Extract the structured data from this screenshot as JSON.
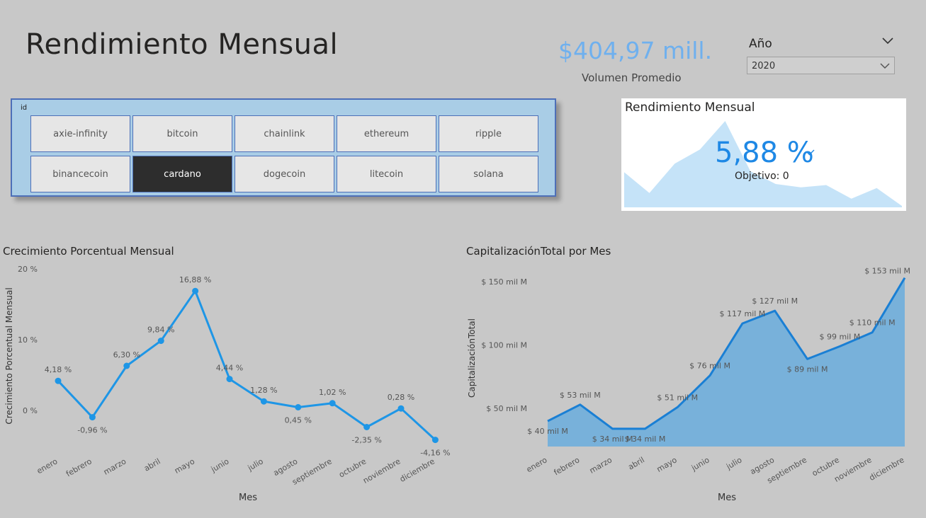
{
  "header": {
    "title": "Rendimiento Mensual"
  },
  "kpi": {
    "value": "$404,97 mill.",
    "label": "Volumen Promedio"
  },
  "year_filter": {
    "label": "Año",
    "selected": "2020"
  },
  "slicer": {
    "title": "id",
    "items": [
      "axie-infinity",
      "bitcoin",
      "chainlink",
      "ethereum",
      "ripple",
      "binancecoin",
      "cardano",
      "dogecoin",
      "litecoin",
      "solana"
    ],
    "selected": "cardano"
  },
  "card": {
    "title": "Rendimiento Mensual",
    "value": "5,88 %",
    "goal": "Objetivo: 0",
    "sparkline": [
      4.18,
      -0.96,
      6.3,
      9.84,
      16.88,
      4.44,
      1.28,
      0.45,
      1.02,
      -2.35,
      0.28,
      -4.16
    ],
    "colors": {
      "accent": "#1e88e5",
      "spark_fill": "#c5e3f8"
    }
  },
  "chart_data": [
    {
      "type": "line",
      "title": "Crecimiento Porcentual Mensual",
      "xlabel": "Mes",
      "ylabel": "Crecimiento Porcentual Mensual",
      "categories": [
        "enero",
        "febrero",
        "marzo",
        "abril",
        "mayo",
        "junio",
        "julio",
        "agosto",
        "septiembre",
        "octubre",
        "noviembre",
        "diciembre"
      ],
      "values": [
        4.18,
        -0.96,
        6.3,
        9.84,
        16.88,
        4.44,
        1.28,
        0.45,
        1.02,
        -2.35,
        0.28,
        -4.16
      ],
      "data_labels": [
        "4,18 %",
        "-0,96 %",
        "6,30 %",
        "9,84 %",
        "16,88 %",
        "4,44 %",
        "1,28 %",
        "0,45 %",
        "1,02 %",
        "-2,35 %",
        "0,28 %",
        "-4,16 %"
      ],
      "yticks": [
        0,
        10,
        20
      ],
      "ytick_labels": [
        "0 %",
        "10 %",
        "20 %"
      ],
      "ylim": [
        -5,
        20
      ],
      "color": "#1e96e6",
      "grid": false
    },
    {
      "type": "area",
      "title": "CapitalizaciónTotal por Mes",
      "xlabel": "Mes",
      "ylabel": "CapitalizaciónTotal",
      "categories": [
        "enero",
        "febrero",
        "marzo",
        "abril",
        "mayo",
        "junio",
        "julio",
        "agosto",
        "septiembre",
        "octubre",
        "noviembre",
        "diciembre"
      ],
      "values": [
        40,
        53,
        34,
        34,
        51,
        76,
        117,
        127,
        89,
        99,
        110,
        153
      ],
      "data_labels": [
        "$ 40 mil M",
        "$ 53 mil M",
        "$ 34 mil M",
        "$ 34 mil M",
        "$ 51 mil M",
        "$ 76 mil M",
        "$ 117 mil M",
        "$ 127 mil M",
        "$ 89 mil M",
        "$ 99 mil M",
        "$ 110 mil M",
        "$ 153 mil M"
      ],
      "yticks": [
        50,
        100,
        150
      ],
      "ytick_labels": [
        "$ 50 mil M",
        "$ 100 mil M",
        "$ 150 mil M"
      ],
      "ylim": [
        20,
        155
      ],
      "line_color": "#1a7fd4",
      "fill_color": "#78b1da",
      "grid": false
    }
  ]
}
